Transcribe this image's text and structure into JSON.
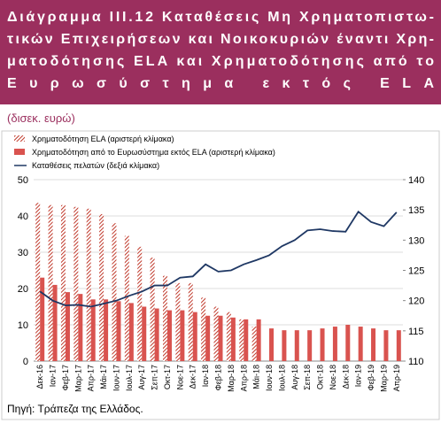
{
  "chart_data": {
    "type": "bar-line",
    "title_lines": [
      "Διάγραμμα ΙΙΙ.12 Καταθέσεις Μη Χρηματοπιστω-",
      "τικών Επιχειρήσεων και Νοικοκυριών έναντι Χρη-",
      "ματοδότησης ELA και Χρηματοδότησης από το",
      "Ευρωσύστημα εκτός ELA"
    ],
    "subtitle": "(δισεκ. ευρώ)",
    "source": "Πηγή: Τράπεζα της Ελλάδος.",
    "categories": [
      "Δεκ-16",
      "Ιαν-17",
      "Φεβ-17",
      "Μαρ-17",
      "Απρ-17",
      "Μάι-17",
      "Ιουν-17",
      "Ιουλ-17",
      "Αυγ-17",
      "Σεπ-17",
      "Οκτ-17",
      "Νοε-17",
      "Δεκ-17",
      "Ιαν-18",
      "Φεβ-18",
      "Μαρ-18",
      "Απρ-18",
      "Μάι-18",
      "Ιουν-18",
      "Ιουλ-18",
      "Αυγ-18",
      "Σεπ-18",
      "Οκτ-18",
      "Νοε-18",
      "Δεκ-18",
      "Ιαν-19",
      "Φεβ-19",
      "Μαρ-19",
      "Απρ-19"
    ],
    "series": [
      {
        "name": "Χρηματοδότηση ELA (αριστερή κλίμακα)",
        "color": "#c0392b",
        "hatch": true,
        "kind": "bar",
        "values": [
          43.6,
          43,
          43,
          42.5,
          42,
          40.5,
          38,
          34.5,
          31.5,
          28.5,
          23.5,
          21.5,
          21.5,
          17.5,
          15,
          13.5,
          11.5,
          9.5,
          0,
          0,
          0,
          0,
          0,
          0,
          0,
          0,
          0,
          0,
          0
        ]
      },
      {
        "name": "Χρηματοδότηση από το Ευρωσύστημα εκτός ELA (αριστερή κλίμακα)",
        "color": "#d9534f",
        "hatch": false,
        "kind": "bar",
        "values": [
          23,
          21,
          19,
          18.5,
          17,
          17,
          16.5,
          16,
          15,
          14.5,
          14,
          14,
          13.5,
          12.5,
          12.5,
          12,
          11.5,
          11.5,
          9,
          8.5,
          8.5,
          8.5,
          9,
          9.5,
          10,
          9.5,
          9,
          8.5,
          8.5
        ]
      },
      {
        "name": "Καταθέσεις πελατών (δεξιά κλίμακα)",
        "color": "#1f3864",
        "kind": "line",
        "axis": "y2",
        "values": [
          121.5,
          120,
          119.2,
          119.3,
          119,
          119.5,
          120,
          120.8,
          121.5,
          122.5,
          122.5,
          123.8,
          124,
          126,
          124.8,
          125,
          126,
          126.7,
          127.5,
          129,
          130,
          131.6,
          131.8,
          131.5,
          131.4,
          134.7,
          133,
          132.3,
          134.6
        ]
      }
    ],
    "ylim": [
      0,
      50
    ],
    "yticks": [
      0,
      10,
      20,
      30,
      40,
      50
    ],
    "y2lim": [
      110,
      140
    ],
    "y2ticks": [
      110,
      115,
      120,
      125,
      130,
      135,
      140
    ],
    "grid": true
  }
}
